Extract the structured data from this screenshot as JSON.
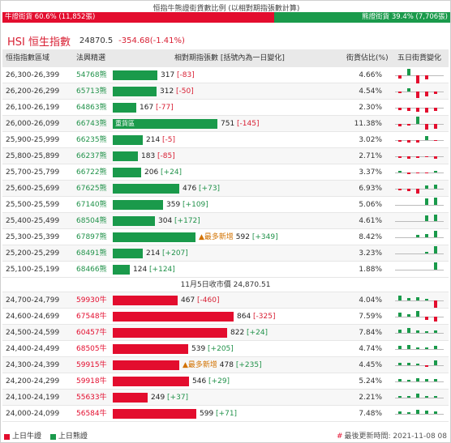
{
  "ratio": {
    "title": "恒指牛熊證街貨數比例 (以相對期指張數計算)",
    "bull_label": "牛證街貨 60.6% (11,852張)",
    "bear_label": "熊證街貨 39.4% (7,706張)",
    "bull_fraction": 0.606,
    "bull_color": "#e30d2e",
    "bear_color": "#1a9a4b"
  },
  "index": {
    "name": "HSI 恒生指數",
    "price": "24870.5",
    "change": "-354.68(-1.41%)"
  },
  "headers": {
    "range": "恒指指數區域",
    "outstanding": "法興精選",
    "contracts": "相對期指張數 [括號內為一日變化]",
    "share": "街貨佔比(%)",
    "trend": "五日街貨變化"
  },
  "bear_rows": [
    {
      "range": "26,300-26,399",
      "outstanding": "54768熊",
      "value": 317,
      "value_text": "317",
      "change": "[-83]",
      "share": "4.66%",
      "spark": [
        -4,
        8,
        -10,
        -5,
        0
      ]
    },
    {
      "range": "26,200-26,299",
      "outstanding": "65713熊",
      "value": 312,
      "value_text": "312",
      "change": "[-50]",
      "share": "4.54%",
      "spark": [
        -2,
        4,
        -8,
        -6,
        -3
      ]
    },
    {
      "range": "26,100-26,199",
      "outstanding": "64863熊",
      "value": 167,
      "value_text": "167",
      "change": "[-77]",
      "share": "2.30%",
      "spark": [
        -3,
        -4,
        -5,
        -6,
        -4
      ]
    },
    {
      "range": "26,000-26,099",
      "outstanding": "66743熊",
      "value": 751,
      "value_text": "751",
      "change": "[-145]",
      "share": "11.38%",
      "spark": [
        -3,
        -2,
        9,
        -7,
        -6
      ],
      "inner_label": "重貨區"
    },
    {
      "range": "25,900-25,999",
      "outstanding": "66235熊",
      "value": 214,
      "value_text": "214",
      "change": "[-5]",
      "share": "3.02%",
      "spark": [
        -2,
        -3,
        -3,
        5,
        -1
      ]
    },
    {
      "range": "25,800-25,899",
      "outstanding": "66237熊",
      "value": 183,
      "value_text": "183",
      "change": "[-85]",
      "share": "2.71%",
      "spark": [
        -2,
        -3,
        -2,
        -1,
        -3
      ]
    },
    {
      "range": "25,700-25,799",
      "outstanding": "66722熊",
      "value": 206,
      "value_text": "206",
      "change": "[+24]",
      "share": "3.37%",
      "spark": [
        2,
        -2,
        -1,
        -1,
        2
      ]
    },
    {
      "range": "25,600-25,699",
      "outstanding": "67625熊",
      "value": 476,
      "value_text": "476",
      "change": "[+73]",
      "share": "6.93%",
      "spark": [
        -2,
        -3,
        -6,
        4,
        5
      ]
    },
    {
      "range": "25,500-25,599",
      "outstanding": "67140熊",
      "value": 359,
      "value_text": "359",
      "change": "[+109]",
      "share": "5.06%",
      "spark": [
        0,
        0,
        0,
        8,
        9
      ]
    },
    {
      "range": "25,400-25,499",
      "outstanding": "68504熊",
      "value": 304,
      "value_text": "304",
      "change": "[+172]",
      "share": "4.61%",
      "spark": [
        0,
        0,
        0,
        7,
        8
      ]
    },
    {
      "range": "25,300-25,399",
      "outstanding": "67897熊",
      "value": 592,
      "value_text": "592",
      "change": "[+349]",
      "share": "8.42%",
      "spark": [
        0,
        0,
        3,
        4,
        8
      ],
      "most_new": "▲最多新增"
    },
    {
      "range": "25,200-25,299",
      "outstanding": "68491熊",
      "value": 214,
      "value_text": "214",
      "change": "[+207]",
      "share": "3.23%",
      "spark": [
        0,
        0,
        0,
        2,
        9
      ]
    },
    {
      "range": "25,100-25,199",
      "outstanding": "68466熊",
      "value": 124,
      "value_text": "124",
      "change": "[+124]",
      "share": "1.88%",
      "spark": [
        0,
        0,
        0,
        0,
        9
      ]
    }
  ],
  "close_label": "11月5日收市價 24,870.51",
  "bull_rows": [
    {
      "range": "24,700-24,799",
      "outstanding": "59930牛",
      "value": 467,
      "value_text": "467",
      "change": "[-460]",
      "share": "4.04%",
      "spark": [
        6,
        3,
        4,
        2,
        -9
      ]
    },
    {
      "range": "24,600-24,699",
      "outstanding": "67548牛",
      "value": 864,
      "value_text": "864",
      "change": "[-325]",
      "share": "7.59%",
      "spark": [
        5,
        3,
        7,
        -4,
        -6
      ]
    },
    {
      "range": "24,500-24,599",
      "outstanding": "60457牛",
      "value": 822,
      "value_text": "822",
      "change": "[+24]",
      "share": "7.84%",
      "spark": [
        4,
        6,
        3,
        2,
        3
      ]
    },
    {
      "range": "24,400-24,499",
      "outstanding": "68505牛",
      "value": 539,
      "value_text": "539",
      "change": "[+205]",
      "share": "4.74%",
      "spark": [
        4,
        5,
        2,
        2,
        4
      ]
    },
    {
      "range": "24,300-24,399",
      "outstanding": "59915牛",
      "value": 478,
      "value_text": "478",
      "change": "[+235]",
      "share": "4.45%",
      "spark": [
        3,
        3,
        2,
        -2,
        6
      ],
      "most_new": "▲最多新增"
    },
    {
      "range": "24,200-24,299",
      "outstanding": "59918牛",
      "value": 546,
      "value_text": "546",
      "change": "[+29]",
      "share": "5.24%",
      "spark": [
        3,
        2,
        4,
        3,
        3
      ]
    },
    {
      "range": "24,100-24,199",
      "outstanding": "55633牛",
      "value": 249,
      "value_text": "249",
      "change": "[+37]",
      "share": "2.21%",
      "spark": [
        2,
        2,
        5,
        2,
        2
      ]
    },
    {
      "range": "24,000-24,099",
      "outstanding": "56584牛",
      "value": 599,
      "value_text": "599",
      "change": "[+71]",
      "share": "7.48%",
      "spark": [
        3,
        2,
        5,
        4,
        3
      ]
    }
  ],
  "legend": {
    "bull": "上日牛證",
    "bear": "上日熊證"
  },
  "updated": {
    "mark": "#",
    "text": "最後更新時間: 2021-11-08 08"
  }
}
